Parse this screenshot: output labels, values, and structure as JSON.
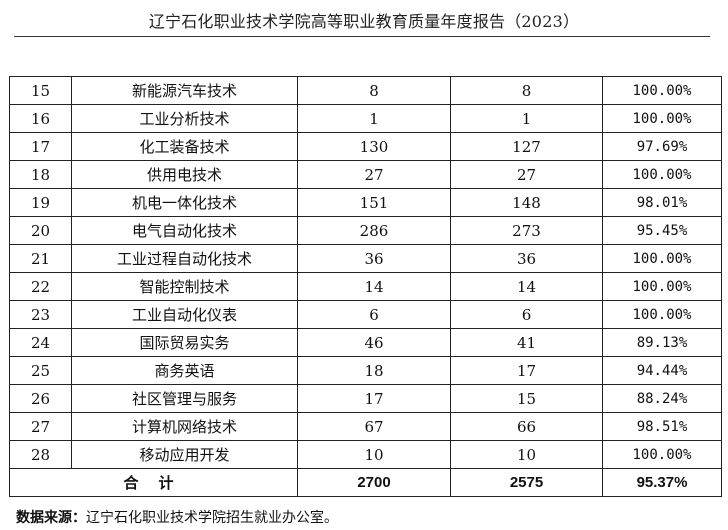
{
  "header": {
    "title": "辽宁石化职业技术学院高等职业教育质量年度报告（2023）"
  },
  "table": {
    "rows": [
      {
        "no": "15",
        "major": "新能源汽车技术",
        "graduates": "8",
        "employed": "8",
        "rate": "100.00%"
      },
      {
        "no": "16",
        "major": "工业分析技术",
        "graduates": "1",
        "employed": "1",
        "rate": "100.00%"
      },
      {
        "no": "17",
        "major": "化工装备技术",
        "graduates": "130",
        "employed": "127",
        "rate": "97.69%"
      },
      {
        "no": "18",
        "major": "供用电技术",
        "graduates": "27",
        "employed": "27",
        "rate": "100.00%"
      },
      {
        "no": "19",
        "major": "机电一体化技术",
        "graduates": "151",
        "employed": "148",
        "rate": "98.01%"
      },
      {
        "no": "20",
        "major": "电气自动化技术",
        "graduates": "286",
        "employed": "273",
        "rate": "95.45%"
      },
      {
        "no": "21",
        "major": "工业过程自动化技术",
        "graduates": "36",
        "employed": "36",
        "rate": "100.00%"
      },
      {
        "no": "22",
        "major": "智能控制技术",
        "graduates": "14",
        "employed": "14",
        "rate": "100.00%"
      },
      {
        "no": "23",
        "major": "工业自动化仪表",
        "graduates": "6",
        "employed": "6",
        "rate": "100.00%"
      },
      {
        "no": "24",
        "major": "国际贸易实务",
        "graduates": "46",
        "employed": "41",
        "rate": "89.13%"
      },
      {
        "no": "25",
        "major": "商务英语",
        "graduates": "18",
        "employed": "17",
        "rate": "94.44%"
      },
      {
        "no": "26",
        "major": "社区管理与服务",
        "graduates": "17",
        "employed": "15",
        "rate": "88.24%"
      },
      {
        "no": "27",
        "major": "计算机网络技术",
        "graduates": "67",
        "employed": "66",
        "rate": "98.51%"
      },
      {
        "no": "28",
        "major": "移动应用开发",
        "graduates": "10",
        "employed": "10",
        "rate": "100.00%"
      }
    ],
    "total": {
      "label": "合计",
      "graduates": "2700",
      "employed": "2575",
      "rate": "95.37%"
    }
  },
  "source": {
    "label": "数据来源：",
    "text": "辽宁石化职业技术学院招生就业办公室。"
  }
}
